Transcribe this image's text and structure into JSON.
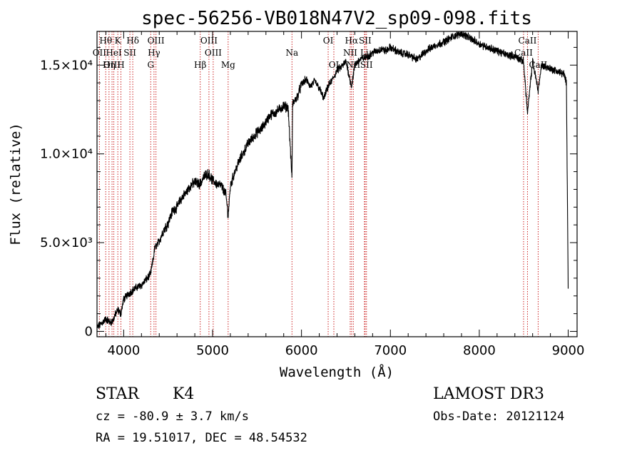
{
  "chart_data": {
    "type": "line",
    "title": "spec-56256-VB018N47V2_sp09-098.fits",
    "xlabel": "Wavelength (Å)",
    "ylabel": "Flux (relative)",
    "xlim": [
      3700,
      9100
    ],
    "ylim": [
      -300,
      16900
    ],
    "x_ticks": [
      {
        "value": 4000,
        "label": "4000"
      },
      {
        "value": 5000,
        "label": "5000"
      },
      {
        "value": 6000,
        "label": "6000"
      },
      {
        "value": 7000,
        "label": "7000"
      },
      {
        "value": 8000,
        "label": "8000"
      },
      {
        "value": 9000,
        "label": "9000"
      }
    ],
    "y_ticks": [
      {
        "value": 0,
        "label": "0"
      },
      {
        "value": 5000,
        "label": "5.0×10³"
      },
      {
        "value": 10000,
        "label": "1.0×10⁴"
      },
      {
        "value": 15000,
        "label": "1.5×10⁴"
      }
    ],
    "line_color": "#000000",
    "marker_color": "#cc2222",
    "spectrum_anchor": {
      "x": [
        3700,
        3760,
        3800,
        3850,
        3880,
        3900,
        3935,
        3968,
        4000,
        4050,
        4100,
        4150,
        4200,
        4250,
        4300,
        4330,
        4350,
        4400,
        4450,
        4500,
        4550,
        4600,
        4650,
        4700,
        4750,
        4800,
        4861,
        4900,
        4950,
        5000,
        5050,
        5100,
        5150,
        5175,
        5200,
        5250,
        5300,
        5350,
        5400,
        5450,
        5500,
        5550,
        5600,
        5650,
        5700,
        5750,
        5800,
        5850,
        5893,
        5900,
        5950,
        6000,
        6050,
        6100,
        6150,
        6200,
        6250,
        6300,
        6350,
        6400,
        6450,
        6500,
        6563,
        6600,
        6650,
        6700,
        6750,
        6800,
        6850,
        6900,
        6950,
        7000,
        7100,
        7200,
        7300,
        7400,
        7500,
        7600,
        7700,
        7800,
        7900,
        8000,
        8100,
        8200,
        8300,
        8400,
        8498,
        8542,
        8600,
        8662,
        8700,
        8800,
        8900,
        8950,
        8980,
        9000
      ],
      "y": [
        200,
        500,
        700,
        500,
        600,
        900,
        1200,
        1000,
        1800,
        2100,
        2300,
        2500,
        2600,
        2900,
        3200,
        4000,
        4700,
        5100,
        5700,
        6100,
        6800,
        7000,
        7500,
        7800,
        8200,
        8400,
        8300,
        8700,
        8900,
        8500,
        8300,
        8200,
        7700,
        6500,
        8200,
        9000,
        9600,
        10100,
        10600,
        10900,
        11200,
        11400,
        11800,
        12200,
        12300,
        12500,
        12700,
        12600,
        8600,
        12800,
        13200,
        13900,
        14200,
        13800,
        14100,
        13700,
        13100,
        13800,
        14200,
        14700,
        14900,
        15200,
        13800,
        15000,
        15300,
        15400,
        15500,
        15700,
        15800,
        15900,
        15800,
        16000,
        15700,
        15600,
        15300,
        15800,
        16100,
        16300,
        16600,
        16800,
        16500,
        16200,
        16000,
        15800,
        15600,
        15500,
        15200,
        12300,
        15200,
        13600,
        15000,
        14800,
        14600,
        14500,
        14000,
        2600
      ]
    },
    "spectral_lines": [
      {
        "name": "Hθ",
        "wavelength": 3798,
        "row": 1
      },
      {
        "name": "OII",
        "wavelength": 3727,
        "row": 2
      },
      {
        "name": "OIII",
        "wavelength": 3869,
        "row": 3
      },
      {
        "name": "K",
        "wavelength": 3934,
        "row": 1
      },
      {
        "name": "HeI",
        "wavelength": 3889,
        "row": 2
      },
      {
        "name": "Hη",
        "wavelength": 3835,
        "row": 3
      },
      {
        "name": "H",
        "wavelength": 3969,
        "row": 3
      },
      {
        "name": "SII",
        "wavelength": 4070,
        "row": 2
      },
      {
        "name": "Hδ",
        "wavelength": 4102,
        "row": 1
      },
      {
        "name": "OIII",
        "wavelength": 4363,
        "row": 1
      },
      {
        "name": "Hγ",
        "wavelength": 4341,
        "row": 2
      },
      {
        "name": "G",
        "wavelength": 4304,
        "row": 3
      },
      {
        "name": "OIII",
        "wavelength": 4959,
        "row": 1
      },
      {
        "name": "OIII",
        "wavelength": 5007,
        "row": 2
      },
      {
        "name": "Hβ",
        "wavelength": 4861,
        "row": 3
      },
      {
        "name": "Mg",
        "wavelength": 5175,
        "row": 3
      },
      {
        "name": "Na",
        "wavelength": 5893,
        "row": 2
      },
      {
        "name": "OI",
        "wavelength": 6300,
        "row": 1
      },
      {
        "name": "OI",
        "wavelength": 6364,
        "row": 3
      },
      {
        "name": "Hα",
        "wavelength": 6563,
        "row": 1
      },
      {
        "name": "SII",
        "wavelength": 6716,
        "row": 1
      },
      {
        "name": "NII",
        "wavelength": 6548,
        "row": 2
      },
      {
        "name": "Li",
        "wavelength": 6708,
        "row": 2
      },
      {
        "name": "NII",
        "wavelength": 6583,
        "row": 3
      },
      {
        "name": "SII",
        "wavelength": 6731,
        "row": 3
      },
      {
        "name": "CaII",
        "wavelength": 8542,
        "row": 1
      },
      {
        "name": "CaII",
        "wavelength": 8498,
        "row": 2
      },
      {
        "name": "CaII",
        "wavelength": 8662,
        "row": 3
      }
    ]
  },
  "info": {
    "object_class": "STAR",
    "subclass": "K4",
    "redshift": "cz = -80.9 ± 3.7 km/s",
    "coords": "RA =  19.51017, DEC =  48.54532",
    "survey": "LAMOST DR3",
    "obs_date": "Obs-Date: 20121124"
  }
}
